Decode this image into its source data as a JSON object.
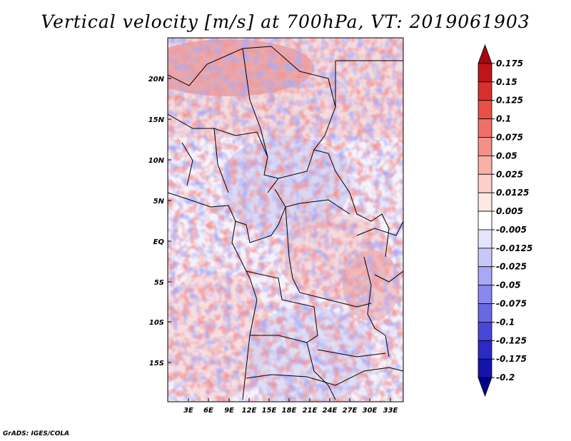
{
  "title": "Vertical velocity [m/s] at 700hPa, VT: 2019061903",
  "credit": "GrADS: IGES/COLA",
  "map": {
    "lat_labels": [
      "20N",
      "15N",
      "10N",
      "5N",
      "EQ",
      "5S",
      "10S",
      "15S"
    ],
    "lon_labels": [
      "3E",
      "6E",
      "9E",
      "12E",
      "15E",
      "18E",
      "21E",
      "24E",
      "27E",
      "30E",
      "33E"
    ],
    "field_description_colors": {
      "positive": "#c0181e",
      "negative": "#2020c0"
    }
  },
  "colorbar": {
    "labels": [
      "0.175",
      "0.15",
      "0.125",
      "0.1",
      "0.075",
      "0.05",
      "0.025",
      "0.0125",
      "0.005",
      "-0.005",
      "-0.0125",
      "-0.025",
      "-0.05",
      "-0.075",
      "-0.1",
      "-0.125",
      "-0.175",
      "-0.2"
    ],
    "colors": [
      "#a00a0e",
      "#c01418",
      "#d8302c",
      "#e85048",
      "#f07068",
      "#f49088",
      "#f8b0a8",
      "#fcd0c8",
      "#fee8e4",
      "#ffffff",
      "#e4e4fc",
      "#c8c8f8",
      "#a8a8f4",
      "#8888ee",
      "#6868e4",
      "#4848d8",
      "#2a2ac4",
      "#1414a8",
      "#00008c"
    ]
  }
}
